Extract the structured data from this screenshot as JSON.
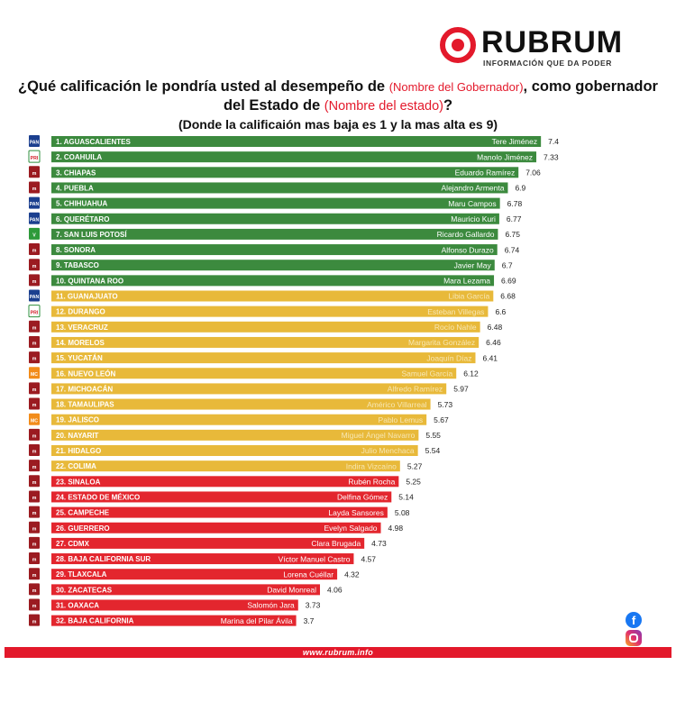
{
  "brand": {
    "name": "RUBRUM",
    "tagline": "INFORMACIÓN QUE DA PODER",
    "website": "www.rubrum.info"
  },
  "question": {
    "part1": "¿Qué calificación le pondría usted al desempeño de ",
    "gov_placeholder": "(Nombre del Gobernador)",
    "part2": ", como gobernador del Estado de ",
    "state_placeholder": "(Nombre del estado)",
    "part3": "?",
    "subtitle": "(Donde la calificaión mas baja es 1 y la mas alta es 9)"
  },
  "colors": {
    "green": "#3c8a3e",
    "yellow": "#e8b93a",
    "red": "#e3262e",
    "brand_red": "#e3192b"
  },
  "chart_data": {
    "type": "bar",
    "orientation": "horizontal",
    "title": "¿Qué calificación le pondría usted al desempeño de (Nombre del Gobernador), como gobernador del Estado de (Nombre del estado)?",
    "subtitle": "(Donde la calificaión mas baja es 1 y la mas alta es 9)",
    "xlim": [
      0,
      7.4
    ],
    "categories": [
      "1. AGUASCALIENTES",
      "2. COAHUILA",
      "3. CHIAPAS",
      "4. PUEBLA",
      "5. CHIHUAHUA",
      "6. QUERÉTARO",
      "7. SAN LUIS POTOSÍ",
      "8. SONORA",
      "9. TABASCO",
      "10. QUINTANA ROO",
      "11. GUANAJUATO",
      "12. DURANGO",
      "13. VERACRUZ",
      "14. MORELOS",
      "15. YUCATÁN",
      "16. NUEVO LEÓN",
      "17. MICHOACÁN",
      "18. TAMAULIPAS",
      "19. JALISCO",
      "20. NAYARIT",
      "21. HIDALGO",
      "22. COLIMA",
      "23. SINALOA",
      "24. ESTADO DE MÉXICO",
      "25. CAMPECHE",
      "26. GUERRERO",
      "27. CDMX",
      "28. BAJA CALIFORNIA SUR",
      "29. TLAXCALA",
      "30. ZACATECAS",
      "31. OAXACA",
      "32. BAJA CALIFORNIA"
    ],
    "governors": [
      "Tere Jiménez",
      "Manolo Jiménez",
      "Eduardo Ramírez",
      "Alejandro Armenta",
      "Maru Campos",
      "Mauricio Kuri",
      "Ricardo Gallardo",
      "Alfonso Durazo",
      "Javier May",
      "Mara Lezama",
      "Libia García",
      "Esteban Villegas",
      "Rocío Nahle",
      "Margarita González",
      "Joaquín Díaz",
      "Samuel García",
      "Alfredo Ramírez",
      "Américo Villarreal",
      "Pablo Lemus",
      "Miguel Ángel Navarro",
      "Julio Menchaca",
      "Indira Vizcaíno",
      "Rubén Rocha",
      "Delfina Gómez",
      "Layda Sansores",
      "Evelyn Salgado",
      "Clara Brugada",
      "Víctor Manuel Castro",
      "Lorena Cuéllar",
      "David Monreal",
      "Salomón Jara",
      "Marina del Pilar Ávila"
    ],
    "values": [
      7.4,
      7.33,
      7.06,
      6.9,
      6.78,
      6.77,
      6.75,
      6.74,
      6.7,
      6.69,
      6.68,
      6.6,
      6.48,
      6.46,
      6.41,
      6.12,
      5.97,
      5.73,
      5.67,
      5.55,
      5.54,
      5.27,
      5.25,
      5.14,
      5.08,
      4.98,
      4.73,
      4.57,
      4.32,
      4.06,
      3.73,
      3.7
    ],
    "value_labels": [
      "7.4",
      "7.33",
      "7.06",
      "6.9",
      "6.78",
      "6.77",
      "6.75",
      "6.74",
      "6.7",
      "6.69",
      "6.68",
      "6.6",
      "6.48",
      "6.46",
      "6.41",
      "6.12",
      "5.97",
      "5.73",
      "5.67",
      "5.55",
      "5.54",
      "5.27",
      "5.25",
      "5.14",
      "5.08",
      "4.98",
      "4.73",
      "4.57",
      "4.32",
      "4.06",
      "3.73",
      "3.7"
    ],
    "tiers": [
      "green",
      "green",
      "green",
      "green",
      "green",
      "green",
      "green",
      "green",
      "green",
      "green",
      "yellow",
      "yellow",
      "yellow",
      "yellow",
      "yellow",
      "yellow",
      "yellow",
      "yellow",
      "yellow",
      "yellow",
      "yellow",
      "yellow",
      "red",
      "red",
      "red",
      "red",
      "red",
      "red",
      "red",
      "red",
      "red",
      "red"
    ],
    "party_logos": [
      "pan",
      "pri",
      "morena",
      "morena",
      "pan",
      "pan",
      "pvem",
      "morena",
      "morena",
      "morena",
      "pan",
      "pri",
      "morena",
      "morena",
      "morena",
      "mc",
      "morena",
      "morena",
      "mc",
      "morena",
      "morena",
      "morena",
      "morena",
      "morena",
      "morena",
      "morena",
      "morena",
      "morena",
      "morena",
      "morena",
      "morena",
      "morena"
    ],
    "grid": false,
    "legend": "none"
  }
}
